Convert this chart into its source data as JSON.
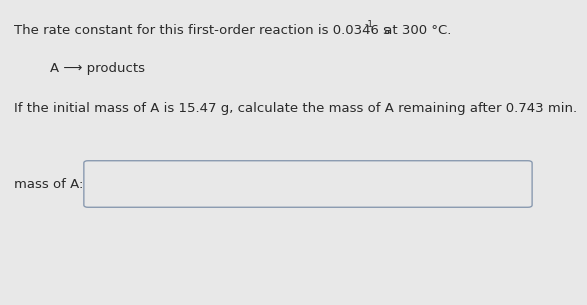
{
  "line1_prefix": "The rate constant for this first-order reaction is 0.0346 s",
  "line1_sup": "-1",
  "line1_suffix": " at 300 °C.",
  "line2": "A ⟶ products",
  "line3": "If the initial mass of A is 15.47 g, calculate the mass of A remaining after 0.743 min.",
  "label": "mass of A:",
  "bg_color": "#e8e8e8",
  "text_color": "#2a2a2a",
  "box_edge_color": "#8a9ab0",
  "font_size_main": 9.5,
  "font_size_sup": 6.5
}
